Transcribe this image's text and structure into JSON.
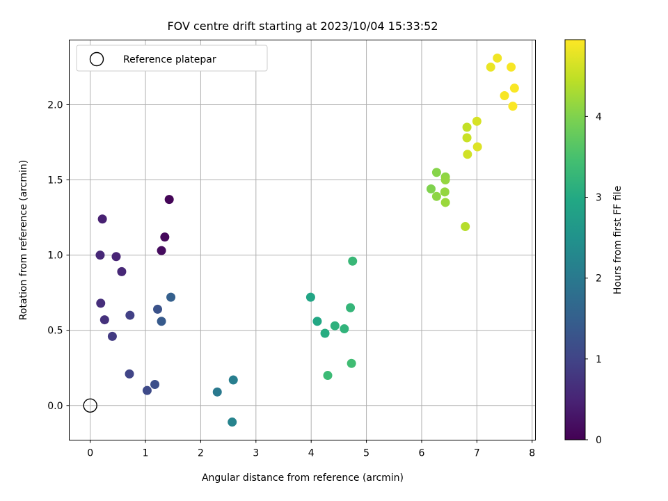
{
  "chart_data": {
    "type": "scatter",
    "title": "FOV centre drift starting at 2023/10/04 15:33:52",
    "xlabel": "Angular distance from reference (arcmin)",
    "ylabel": "Rotation from reference (arcmin)",
    "xlim": [
      -0.38,
      8.06
    ],
    "ylim": [
      -0.23,
      2.43
    ],
    "xticks": [
      "0",
      "1",
      "2",
      "3",
      "4",
      "5",
      "6",
      "7",
      "8"
    ],
    "yticks": [
      "0.0",
      "0.5",
      "1.0",
      "1.5",
      "2.0"
    ],
    "grid": true,
    "legend": {
      "location": "upper-left",
      "entries": [
        "Reference platepar"
      ]
    },
    "reference_point": {
      "x": 0,
      "y": 0
    },
    "colorbar": {
      "label": "Hours from first FF file",
      "range": [
        0,
        4.95
      ],
      "ticks": [
        "0",
        "1",
        "2",
        "3",
        "4"
      ],
      "colormap": "viridis"
    },
    "points": [
      {
        "x": 1.43,
        "y": 1.37,
        "c": 0.05
      },
      {
        "x": 1.35,
        "y": 1.12,
        "c": 0.1
      },
      {
        "x": 1.29,
        "y": 1.03,
        "c": 0.15
      },
      {
        "x": 0.22,
        "y": 1.24,
        "c": 0.45
      },
      {
        "x": 0.18,
        "y": 1.0,
        "c": 0.55
      },
      {
        "x": 0.47,
        "y": 0.99,
        "c": 0.5
      },
      {
        "x": 0.57,
        "y": 0.89,
        "c": 0.55
      },
      {
        "x": 0.19,
        "y": 0.68,
        "c": 0.65
      },
      {
        "x": 0.26,
        "y": 0.57,
        "c": 0.7
      },
      {
        "x": 0.4,
        "y": 0.46,
        "c": 0.85
      },
      {
        "x": 0.72,
        "y": 0.6,
        "c": 0.95
      },
      {
        "x": 0.71,
        "y": 0.21,
        "c": 1.0
      },
      {
        "x": 1.03,
        "y": 0.1,
        "c": 1.1
      },
      {
        "x": 1.17,
        "y": 0.14,
        "c": 1.2
      },
      {
        "x": 1.22,
        "y": 0.64,
        "c": 1.25
      },
      {
        "x": 1.29,
        "y": 0.56,
        "c": 1.4
      },
      {
        "x": 1.46,
        "y": 0.72,
        "c": 1.5
      },
      {
        "x": 2.3,
        "y": 0.09,
        "c": 2.0
      },
      {
        "x": 2.59,
        "y": 0.17,
        "c": 2.1
      },
      {
        "x": 2.57,
        "y": -0.11,
        "c": 2.2
      },
      {
        "x": 3.99,
        "y": 0.72,
        "c": 2.9
      },
      {
        "x": 4.11,
        "y": 0.56,
        "c": 2.95
      },
      {
        "x": 4.25,
        "y": 0.48,
        "c": 3.05
      },
      {
        "x": 4.43,
        "y": 0.53,
        "c": 3.15
      },
      {
        "x": 4.6,
        "y": 0.51,
        "c": 3.2
      },
      {
        "x": 4.71,
        "y": 0.65,
        "c": 3.25
      },
      {
        "x": 4.75,
        "y": 0.96,
        "c": 3.3
      },
      {
        "x": 4.3,
        "y": 0.2,
        "c": 3.35
      },
      {
        "x": 4.73,
        "y": 0.28,
        "c": 3.4
      },
      {
        "x": 6.17,
        "y": 1.44,
        "c": 4.0
      },
      {
        "x": 6.27,
        "y": 1.55,
        "c": 4.05
      },
      {
        "x": 6.27,
        "y": 1.39,
        "c": 4.1
      },
      {
        "x": 6.43,
        "y": 1.52,
        "c": 4.1
      },
      {
        "x": 6.43,
        "y": 1.5,
        "c": 4.15
      },
      {
        "x": 6.42,
        "y": 1.42,
        "c": 4.15
      },
      {
        "x": 6.43,
        "y": 1.35,
        "c": 4.2
      },
      {
        "x": 6.79,
        "y": 1.19,
        "c": 4.4
      },
      {
        "x": 6.82,
        "y": 1.85,
        "c": 4.5
      },
      {
        "x": 6.82,
        "y": 1.78,
        "c": 4.55
      },
      {
        "x": 6.83,
        "y": 1.67,
        "c": 4.6
      },
      {
        "x": 7.0,
        "y": 1.89,
        "c": 4.65
      },
      {
        "x": 7.01,
        "y": 1.72,
        "c": 4.7
      },
      {
        "x": 7.25,
        "y": 2.25,
        "c": 4.8
      },
      {
        "x": 7.37,
        "y": 2.31,
        "c": 4.85
      },
      {
        "x": 7.62,
        "y": 2.25,
        "c": 4.9
      },
      {
        "x": 7.5,
        "y": 2.06,
        "c": 4.9
      },
      {
        "x": 7.68,
        "y": 2.11,
        "c": 4.92
      },
      {
        "x": 7.65,
        "y": 1.99,
        "c": 4.93
      }
    ]
  }
}
